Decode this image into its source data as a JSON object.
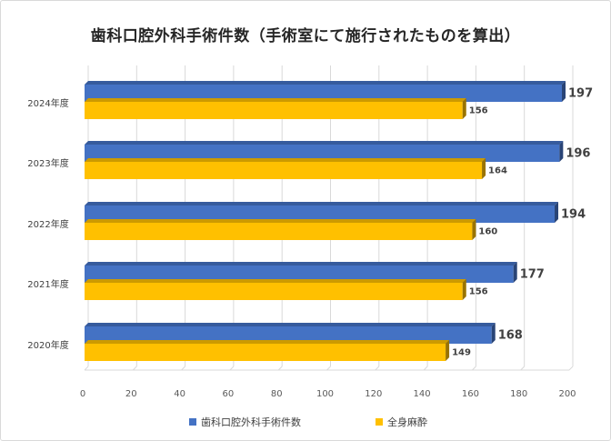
{
  "chart_data": {
    "type": "bar",
    "orientation": "horizontal",
    "style": "3d",
    "title": "歯科口腔外科手術件数（手術室にて施行されたものを算出）",
    "categories": [
      "2024年度",
      "2023年度",
      "2022年度",
      "2021年度",
      "2020年度"
    ],
    "series": [
      {
        "name": "歯科口腔外科手術件数",
        "color": "#4472c4",
        "values": [
          197,
          196,
          194,
          177,
          168
        ]
      },
      {
        "name": "全身麻酔",
        "color": "#ffc000",
        "values": [
          156,
          164,
          160,
          156,
          149
        ]
      }
    ],
    "xlim": [
      0,
      200
    ],
    "xticks": [
      "0",
      "20",
      "40",
      "60",
      "80",
      "100",
      "120",
      "140",
      "160",
      "180",
      "200"
    ],
    "grid": true,
    "legend_position": "bottom"
  }
}
